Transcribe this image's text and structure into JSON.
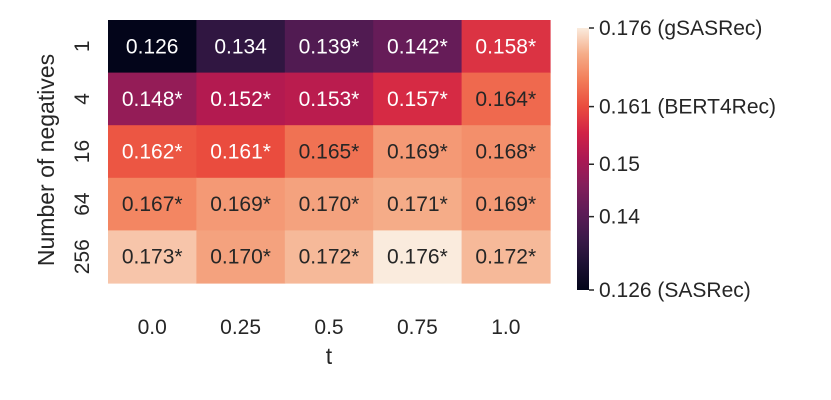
{
  "chart_data": {
    "type": "heatmap",
    "xlabel": "t",
    "ylabel": "Number of negatives",
    "x_categories": [
      "0.0",
      "0.25",
      "0.5",
      "0.75",
      "1.0"
    ],
    "y_categories": [
      "1",
      "4",
      "16",
      "64",
      "256"
    ],
    "values": [
      [
        0.126,
        0.134,
        0.139,
        0.142,
        0.158
      ],
      [
        0.148,
        0.152,
        0.153,
        0.157,
        0.164
      ],
      [
        0.162,
        0.161,
        0.165,
        0.169,
        0.168
      ],
      [
        0.167,
        0.169,
        0.17,
        0.171,
        0.169
      ],
      [
        0.173,
        0.17,
        0.172,
        0.176,
        0.172
      ]
    ],
    "cell_labels": [
      [
        "0.126",
        "0.134",
        "0.139*",
        "0.142*",
        "0.158*"
      ],
      [
        "0.148*",
        "0.152*",
        "0.153*",
        "0.157*",
        "0.164*"
      ],
      [
        "0.162*",
        "0.161*",
        "0.165*",
        "0.169*",
        "0.168*"
      ],
      [
        "0.167*",
        "0.169*",
        "0.170*",
        "0.171*",
        "0.169*"
      ],
      [
        "0.173*",
        "0.170*",
        "0.172*",
        "0.176*",
        "0.172*"
      ]
    ],
    "colormap": "rocket",
    "color_range": [
      0.126,
      0.176
    ],
    "colorbar_ticks": [
      {
        "value": 0.176,
        "label": "0.176 (gSASRec)"
      },
      {
        "value": 0.161,
        "label": "0.161 (BERT4Rec)"
      },
      {
        "value": 0.15,
        "label": "0.15"
      },
      {
        "value": 0.14,
        "label": "0.14"
      },
      {
        "value": 0.126,
        "label": "0.126 (SASRec)"
      }
    ]
  }
}
